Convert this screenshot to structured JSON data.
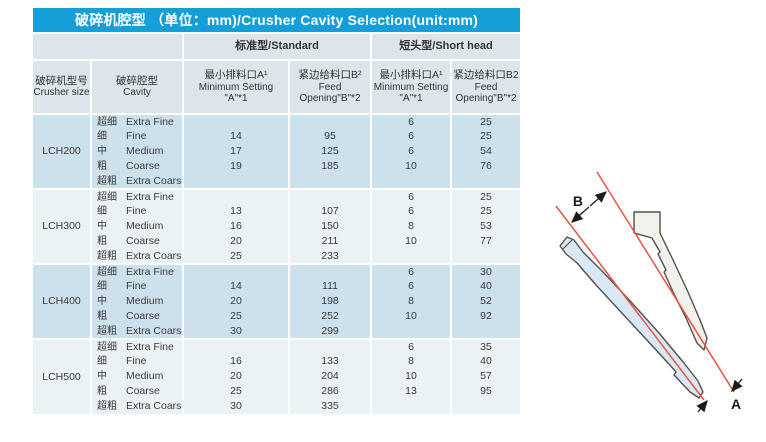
{
  "title": "破碎机腔型 （单位：mm)/Crusher Cavity Selection(unit:mm)",
  "colors": {
    "title_bg": "#149fd9",
    "header_bg": "#dce6ea",
    "group_bg_a": "#cde1ec",
    "group_bg_b": "#ebf2f5",
    "dimension_line": "#e85340",
    "mantle_fill": "#d9e8f3",
    "liner_fill": "#f2f1ec",
    "shape_outline": "#54504d"
  },
  "table": {
    "group_headers": {
      "standard": "标准型/Standard",
      "short_head": "短头型/Short head"
    },
    "columns": {
      "crusher_size": {
        "zh": "破碎机型号",
        "en": "Crusher size"
      },
      "cavity": {
        "zh": "破碎腔型",
        "en": "Cavity"
      },
      "std_min_setting": {
        "zh": "最小排料口A¹",
        "en1": "Minimum Setting",
        "en2": "\"A\"*1"
      },
      "std_feed_opening": {
        "zh": "紧边给料口B²",
        "en1": "Feed",
        "en2": "Opening\"B\"*2"
      },
      "sh_min_setting": {
        "zh": "最小排料口A¹",
        "en1": "Minimum Setting",
        "en2": "\"A\"*1"
      },
      "sh_feed_opening": {
        "zh": "紧边给料口B2",
        "en1": "Feed",
        "en2": "Opening\"B\"*2"
      }
    },
    "groups": [
      {
        "model": "LCH200",
        "rows": [
          {
            "cavity_zh": "超细",
            "cavity_en": "Extra Fine",
            "std_a": "",
            "std_b": "",
            "sh_a": "6",
            "sh_b": "25"
          },
          {
            "cavity_zh": "细",
            "cavity_en": "Fine",
            "std_a": "14",
            "std_b": "95",
            "sh_a": "6",
            "sh_b": "25"
          },
          {
            "cavity_zh": "中",
            "cavity_en": "Medium",
            "std_a": "17",
            "std_b": "125",
            "sh_a": "6",
            "sh_b": "54"
          },
          {
            "cavity_zh": "粗",
            "cavity_en": "Coarse",
            "std_a": "19",
            "std_b": "185",
            "sh_a": "10",
            "sh_b": "76"
          },
          {
            "cavity_zh": "超粗",
            "cavity_en": "Extra Coarse",
            "std_a": "",
            "std_b": "",
            "sh_a": "",
            "sh_b": ""
          }
        ]
      },
      {
        "model": "LCH300",
        "rows": [
          {
            "cavity_zh": "超细",
            "cavity_en": "Extra Fine",
            "std_a": "",
            "std_b": "",
            "sh_a": "6",
            "sh_b": "25"
          },
          {
            "cavity_zh": "细",
            "cavity_en": "Fine",
            "std_a": "13",
            "std_b": "107",
            "sh_a": "6",
            "sh_b": "25"
          },
          {
            "cavity_zh": "中",
            "cavity_en": "Medium",
            "std_a": "16",
            "std_b": "150",
            "sh_a": "8",
            "sh_b": "53"
          },
          {
            "cavity_zh": "粗",
            "cavity_en": "Coarse",
            "std_a": "20",
            "std_b": "211",
            "sh_a": "10",
            "sh_b": "77"
          },
          {
            "cavity_zh": "超粗",
            "cavity_en": "Extra Coarse",
            "std_a": "25",
            "std_b": "233",
            "sh_a": "",
            "sh_b": ""
          }
        ]
      },
      {
        "model": "LCH400",
        "rows": [
          {
            "cavity_zh": "超细",
            "cavity_en": "Extra Fine",
            "std_a": "",
            "std_b": "",
            "sh_a": "6",
            "sh_b": "30"
          },
          {
            "cavity_zh": "细",
            "cavity_en": "Fine",
            "std_a": "14",
            "std_b": "111",
            "sh_a": "6",
            "sh_b": "40"
          },
          {
            "cavity_zh": "中",
            "cavity_en": "Medium",
            "std_a": "20",
            "std_b": "198",
            "sh_a": "8",
            "sh_b": "52"
          },
          {
            "cavity_zh": "粗",
            "cavity_en": "Coarse",
            "std_a": "25",
            "std_b": "252",
            "sh_a": "10",
            "sh_b": "92"
          },
          {
            "cavity_zh": "超粗",
            "cavity_en": "Extra Coarse",
            "std_a": "30",
            "std_b": "299",
            "sh_a": "",
            "sh_b": ""
          }
        ]
      },
      {
        "model": "LCH500",
        "rows": [
          {
            "cavity_zh": "超细",
            "cavity_en": "Extra Fine",
            "std_a": "",
            "std_b": "",
            "sh_a": "6",
            "sh_b": "35"
          },
          {
            "cavity_zh": "细",
            "cavity_en": "Fine",
            "std_a": "16",
            "std_b": "133",
            "sh_a": "8",
            "sh_b": "40"
          },
          {
            "cavity_zh": "中",
            "cavity_en": "Medium",
            "std_a": "20",
            "std_b": "204",
            "sh_a": "10",
            "sh_b": "57"
          },
          {
            "cavity_zh": "粗",
            "cavity_en": "Coarse",
            "std_a": "25",
            "std_b": "286",
            "sh_a": "13",
            "sh_b": "95"
          },
          {
            "cavity_zh": "超粗",
            "cavity_en": "Extra Coarse",
            "std_a": "30",
            "std_b": "335",
            "sh_a": "",
            "sh_b": ""
          }
        ]
      }
    ]
  },
  "diagram": {
    "label_b": "B",
    "label_a": "A"
  }
}
